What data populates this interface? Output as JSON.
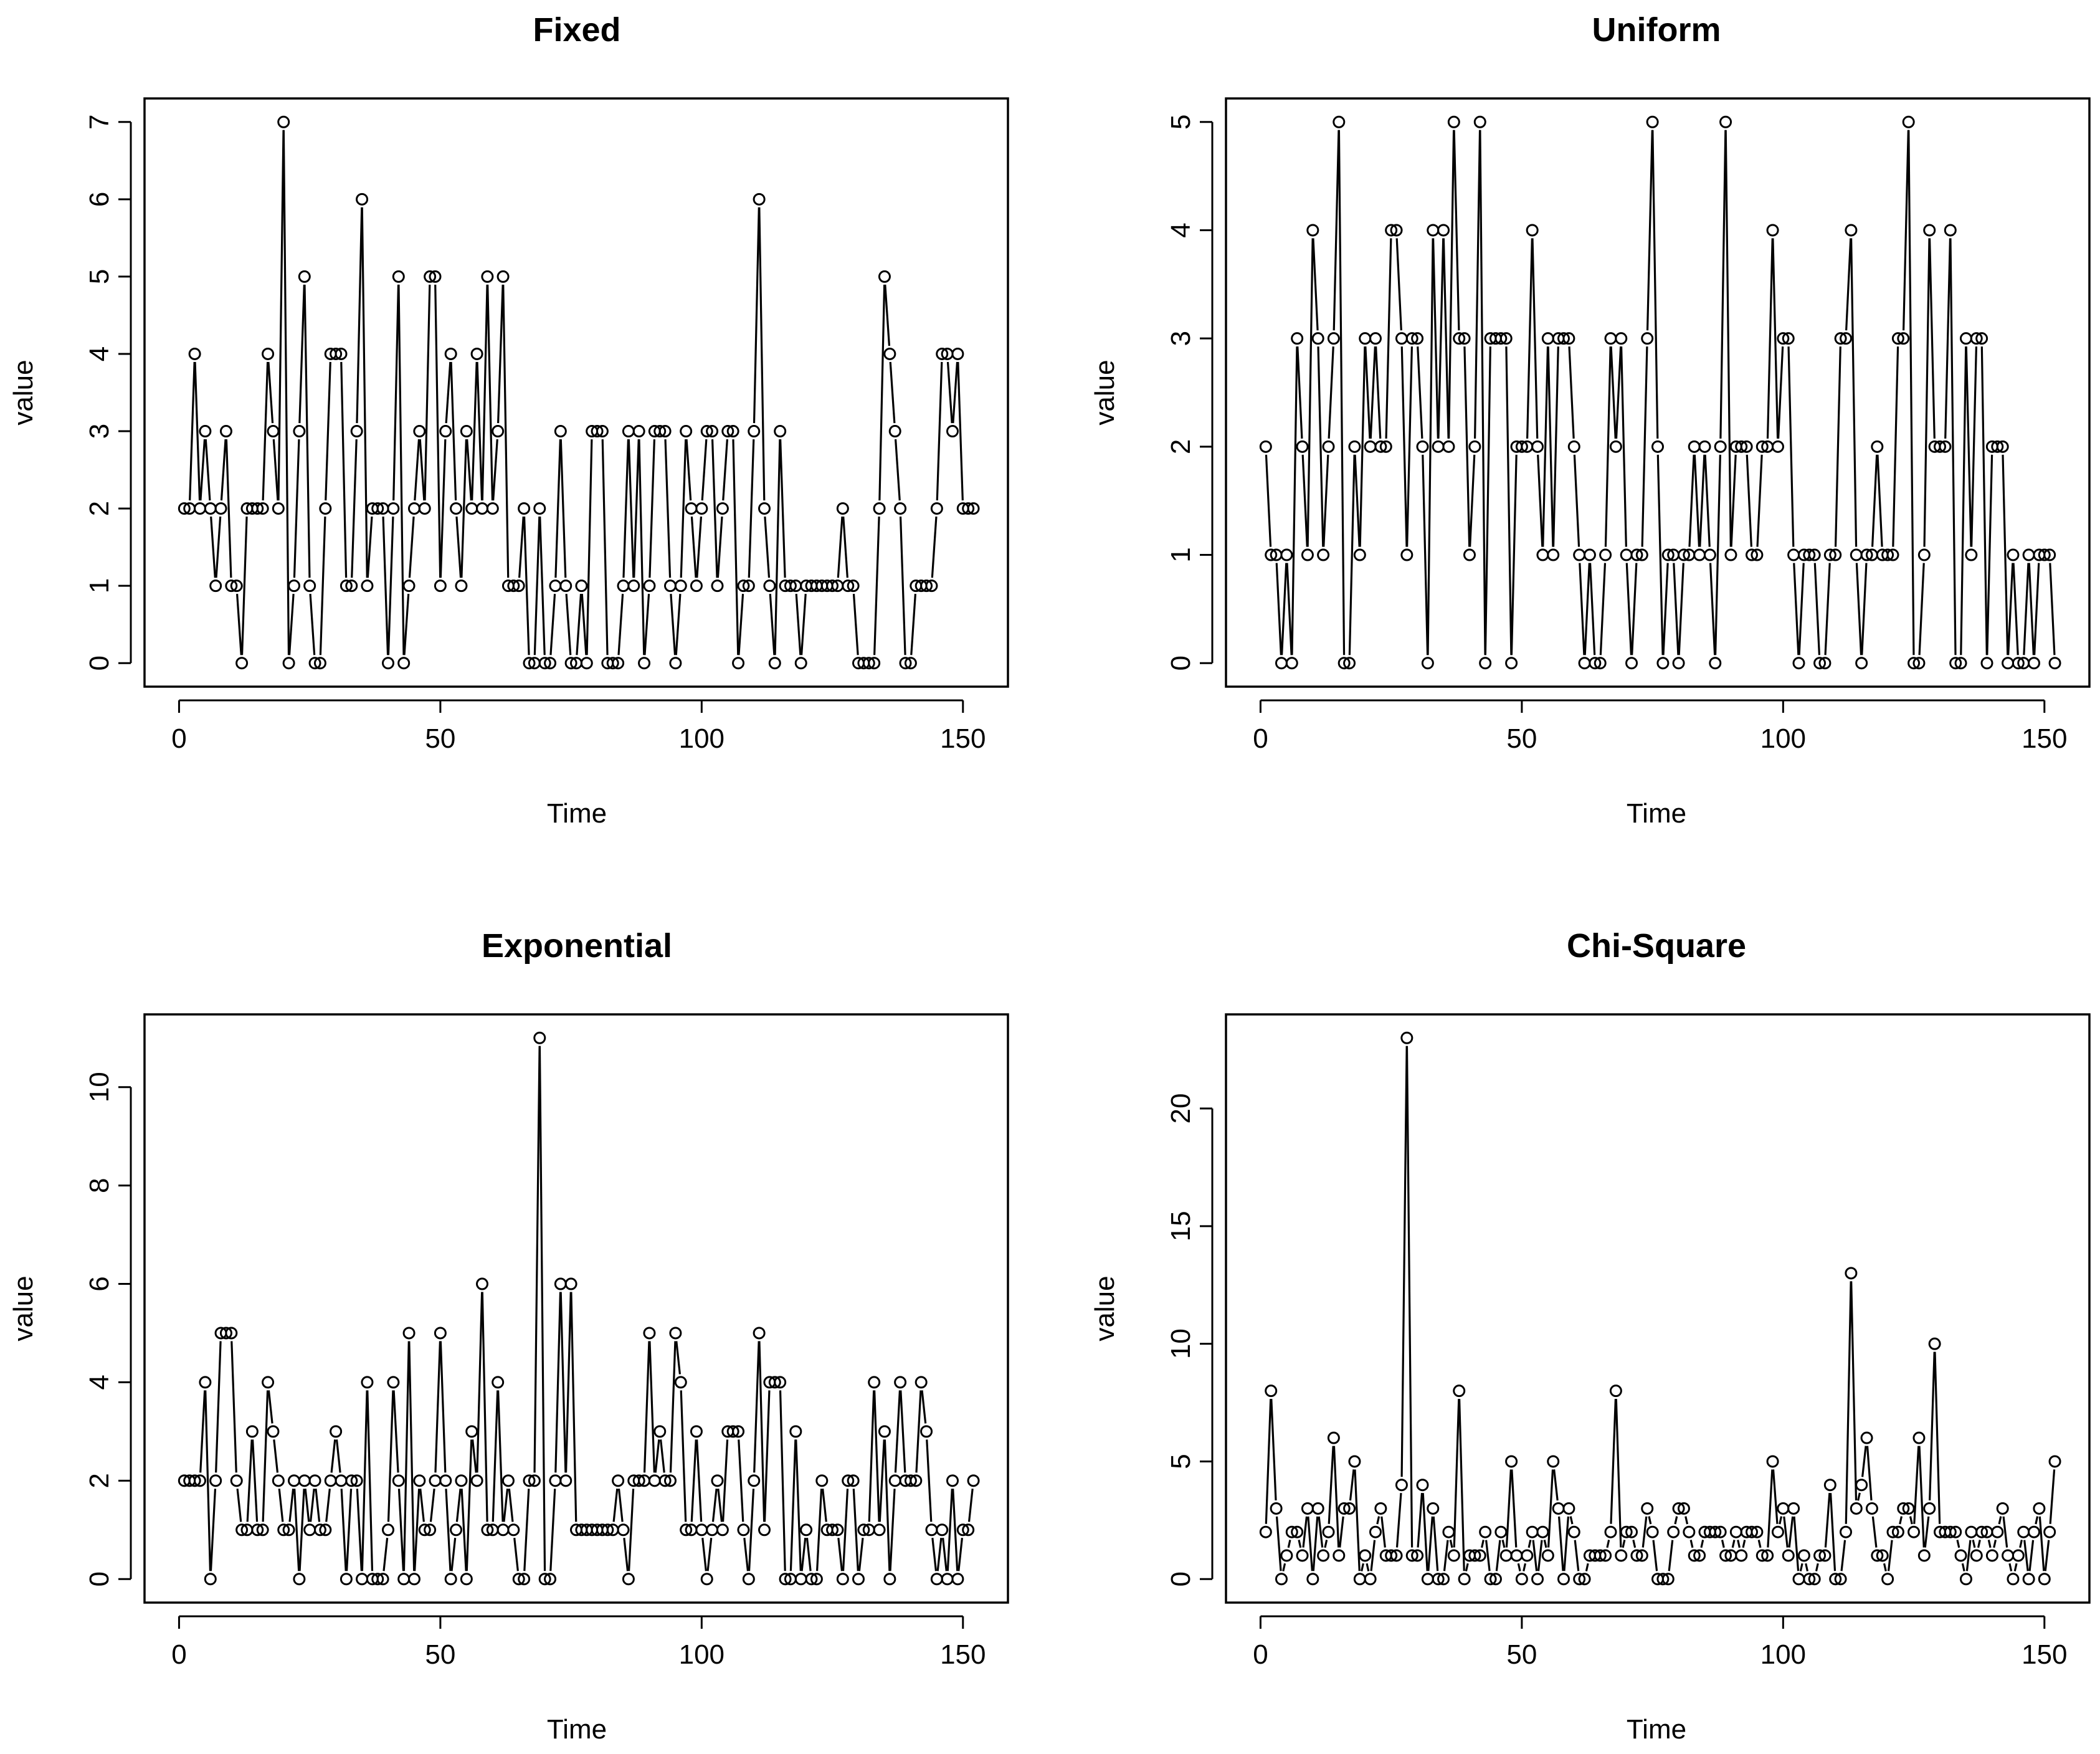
{
  "chart_data": [
    {
      "type": "line",
      "style": "both (points and lines)",
      "title": "Fixed",
      "xlabel": "Time",
      "ylabel": "value",
      "xlim": [
        0,
        152
      ],
      "ylim": [
        0,
        7
      ],
      "xticks": [
        0,
        50,
        100,
        150
      ],
      "yticks": [
        0,
        1,
        2,
        3,
        4,
        5,
        6,
        7
      ],
      "x_start": 1,
      "values": [
        2,
        2,
        4,
        2,
        3,
        2,
        1,
        2,
        3,
        1,
        1,
        0,
        2,
        2,
        2,
        2,
        4,
        3,
        2,
        7,
        0,
        1,
        3,
        5,
        1,
        0,
        0,
        2,
        4,
        4,
        4,
        1,
        1,
        3,
        6,
        1,
        2,
        2,
        2,
        0,
        2,
        5,
        0,
        1,
        2,
        3,
        2,
        5,
        5,
        1,
        3,
        4,
        2,
        1,
        3,
        2,
        4,
        2,
        5,
        2,
        3,
        5,
        1,
        1,
        1,
        2,
        0,
        0,
        2,
        0,
        0,
        1,
        3,
        1,
        0,
        0,
        1,
        0,
        3,
        3,
        3,
        0,
        0,
        0,
        1,
        3,
        1,
        3,
        0,
        1,
        3,
        3,
        3,
        1,
        0,
        1,
        3,
        2,
        1,
        2,
        3,
        3,
        1,
        2,
        3,
        3,
        0,
        1,
        1,
        3,
        6,
        2,
        1,
        0,
        3,
        1,
        1,
        1,
        0,
        1,
        1,
        1,
        1,
        1,
        1,
        1,
        2,
        1,
        1,
        0,
        0,
        0,
        0,
        2,
        5,
        4,
        3,
        2,
        0,
        0,
        1,
        1,
        1,
        1,
        2,
        4,
        4,
        3,
        4,
        2,
        2,
        2
      ]
    },
    {
      "type": "line",
      "style": "both (points and lines)",
      "title": "Uniform",
      "xlabel": "Time",
      "ylabel": "value",
      "xlim": [
        0,
        152
      ],
      "ylim": [
        0,
        5
      ],
      "xticks": [
        0,
        50,
        100,
        150
      ],
      "yticks": [
        0,
        1,
        2,
        3,
        4,
        5
      ],
      "x_start": 1,
      "values": [
        2,
        1,
        1,
        0,
        1,
        0,
        3,
        2,
        1,
        4,
        3,
        1,
        2,
        3,
        5,
        0,
        0,
        2,
        1,
        3,
        2,
        3,
        2,
        2,
        4,
        4,
        3,
        1,
        3,
        3,
        2,
        0,
        4,
        2,
        4,
        2,
        5,
        3,
        3,
        1,
        2,
        5,
        0,
        3,
        3,
        3,
        3,
        0,
        2,
        2,
        2,
        4,
        2,
        1,
        3,
        1,
        3,
        3,
        3,
        2,
        1,
        0,
        1,
        0,
        0,
        1,
        3,
        2,
        3,
        1,
        0,
        1,
        1,
        3,
        5,
        2,
        0,
        1,
        1,
        0,
        1,
        1,
        2,
        1,
        2,
        1,
        0,
        2,
        5,
        1,
        2,
        2,
        2,
        1,
        1,
        2,
        2,
        4,
        2,
        3,
        3,
        1,
        0,
        1,
        1,
        1,
        0,
        0,
        1,
        1,
        3,
        3,
        4,
        1,
        0,
        1,
        1,
        2,
        1,
        1,
        1,
        3,
        3,
        5,
        0,
        0,
        1,
        4,
        2,
        2,
        2,
        4,
        0,
        0,
        3,
        1,
        3,
        3,
        0,
        2,
        2,
        2,
        0,
        1,
        0,
        0,
        1,
        0,
        1,
        1,
        1,
        0
      ]
    },
    {
      "type": "line",
      "style": "both (points and lines)",
      "title": "Exponential",
      "xlabel": "Time",
      "ylabel": "value",
      "xlim": [
        0,
        152
      ],
      "ylim": [
        0,
        11
      ],
      "xticks": [
        0,
        50,
        100,
        150
      ],
      "yticks": [
        0,
        2,
        4,
        6,
        8,
        10
      ],
      "x_start": 1,
      "values": [
        2,
        2,
        2,
        2,
        4,
        0,
        2,
        5,
        5,
        5,
        2,
        1,
        1,
        3,
        1,
        1,
        4,
        3,
        2,
        1,
        1,
        2,
        0,
        2,
        1,
        2,
        1,
        1,
        2,
        3,
        2,
        0,
        2,
        2,
        0,
        4,
        0,
        0,
        0,
        1,
        4,
        2,
        0,
        5,
        0,
        2,
        1,
        1,
        2,
        5,
        2,
        0,
        1,
        2,
        0,
        3,
        2,
        6,
        1,
        1,
        4,
        1,
        2,
        1,
        0,
        0,
        2,
        2,
        11,
        0,
        0,
        2,
        6,
        2,
        6,
        1,
        1,
        1,
        1,
        1,
        1,
        1,
        1,
        2,
        1,
        0,
        2,
        2,
        2,
        5,
        2,
        3,
        2,
        2,
        5,
        4,
        1,
        1,
        3,
        1,
        0,
        1,
        2,
        1,
        3,
        3,
        3,
        1,
        0,
        2,
        5,
        1,
        4,
        4,
        4,
        0,
        0,
        3,
        0,
        1,
        0,
        0,
        2,
        1,
        1,
        1,
        0,
        2,
        2,
        0,
        1,
        1,
        4,
        1,
        3,
        0,
        2,
        4,
        2,
        2,
        2,
        4,
        3,
        1,
        0,
        1,
        0,
        2,
        0,
        1,
        1,
        2
      ]
    },
    {
      "type": "line",
      "style": "both (points and lines)",
      "title": "Chi-Square",
      "xlabel": "Time",
      "ylabel": "value",
      "xlim": [
        0,
        152
      ],
      "ylim": [
        0,
        23
      ],
      "xticks": [
        0,
        50,
        100,
        150
      ],
      "yticks": [
        0,
        5,
        10,
        15,
        20
      ],
      "x_start": 1,
      "values": [
        2,
        8,
        3,
        0,
        1,
        2,
        2,
        1,
        3,
        0,
        3,
        1,
        2,
        6,
        1,
        3,
        3,
        5,
        0,
        1,
        0,
        2,
        3,
        1,
        1,
        1,
        4,
        23,
        1,
        1,
        4,
        0,
        3,
        0,
        0,
        2,
        1,
        8,
        0,
        1,
        1,
        1,
        2,
        0,
        0,
        2,
        1,
        5,
        1,
        0,
        1,
        2,
        0,
        2,
        1,
        5,
        3,
        0,
        3,
        2,
        0,
        0,
        1,
        1,
        1,
        1,
        2,
        8,
        1,
        2,
        2,
        1,
        1,
        3,
        2,
        0,
        0,
        0,
        2,
        3,
        3,
        2,
        1,
        1,
        2,
        2,
        2,
        2,
        1,
        1,
        2,
        1,
        2,
        2,
        2,
        1,
        1,
        5,
        2,
        3,
        1,
        3,
        0,
        1,
        0,
        0,
        1,
        1,
        4,
        0,
        0,
        2,
        13,
        3,
        4,
        6,
        3,
        1,
        1,
        0,
        2,
        2,
        3,
        3,
        2,
        6,
        1,
        3,
        10,
        2,
        2,
        2,
        2,
        1,
        0,
        2,
        1,
        2,
        2,
        1,
        2,
        3,
        1,
        0,
        1,
        2,
        0,
        2,
        3,
        0,
        2,
        5
      ]
    }
  ]
}
